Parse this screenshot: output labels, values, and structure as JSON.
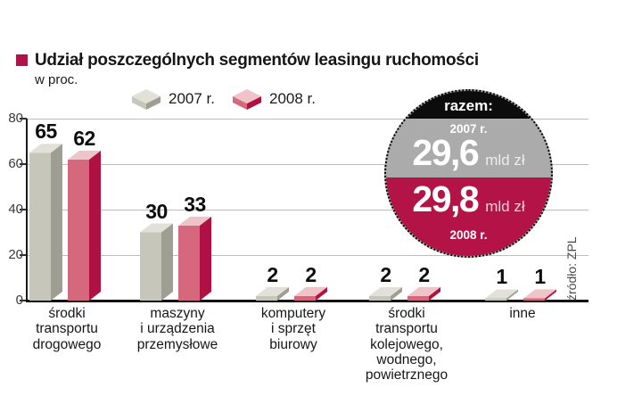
{
  "header": {
    "subtitle": "w proc."
  },
  "chart_data": {
    "type": "bar",
    "title": "Udział poszczególnych segmentów leasingu ruchomości",
    "unit_note": "w proc.",
    "categories": [
      "środki\ntransportu\ndrogowego",
      "maszyny\ni urządzenia\nprzemysłowe",
      "komputery\ni sprzęt\nbiurowy",
      "środki\ntransportu\nkolejowego,\nwodnego,\npowietrznego",
      "inne"
    ],
    "series": [
      {
        "name": "2007 r.",
        "values": [
          65,
          30,
          2,
          2,
          1
        ],
        "colors": {
          "front": "#c6c6ba",
          "side": "#9e9e92",
          "top": "#e1e1d9"
        }
      },
      {
        "name": "2008 r.",
        "values": [
          62,
          33,
          2,
          2,
          1
        ],
        "colors": {
          "front": "#d5687c",
          "side": "#af1242",
          "top": "#eec4c9"
        }
      }
    ],
    "ylim": [
      0,
      80
    ],
    "yticks": [
      0,
      20,
      40,
      60,
      80
    ],
    "grid": true,
    "legend_position": "top"
  },
  "badge": {
    "header": "razem:",
    "top": {
      "year": "2007 r.",
      "value": "29,6",
      "unit": "mld zł"
    },
    "bottom": {
      "value": "29,8",
      "unit": "mld zł",
      "year": "2008 r."
    },
    "colors": {
      "cap": "#0c0c0c",
      "top_segment": "#ababab",
      "bottom_segment": "#b41347"
    }
  },
  "source": "źródło: ZPL",
  "accent_color": "#b0134a"
}
